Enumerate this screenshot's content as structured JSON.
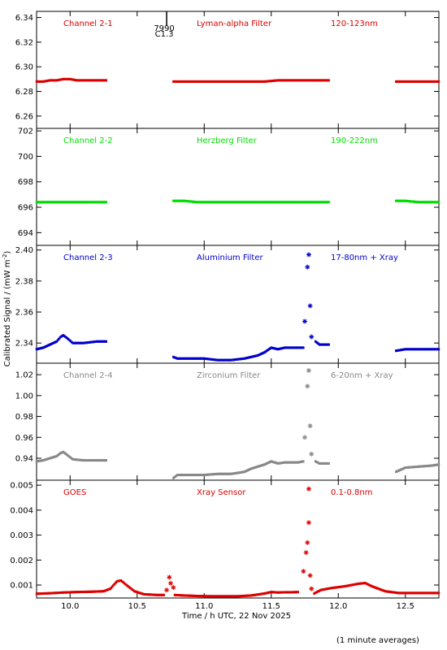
{
  "figure": {
    "ylabel": "Calibrated Signal / (mW m",
    "ylabel_sup": "-2",
    "ylabel_end": ")",
    "xlabel": "Time / h UTC, 22 Nov 2025",
    "footnote": "(1 minute averages)",
    "event_marker": {
      "x": 10.72,
      "label_top": "7990",
      "label_bottom": "C1.3"
    }
  },
  "chart_data": [
    {
      "type": "scatter",
      "panel": "Channel 2-1",
      "labels": [
        "Channel 2-1",
        "Lyman-alpha Filter",
        "120-123nm"
      ],
      "color": "#dd0000",
      "xlim": [
        9.75,
        12.75
      ],
      "ylim": [
        6.25,
        6.345
      ],
      "yticks": [
        6.26,
        6.28,
        6.3,
        6.32,
        6.34
      ],
      "ytick_labels": [
        "6.26",
        "6.28",
        "6.30",
        "6.32",
        "6.34"
      ],
      "marker": "dot",
      "series": [
        {
          "values": [
            [
              9.75,
              6.288
            ],
            [
              9.8,
              6.288
            ],
            [
              9.85,
              6.289
            ],
            [
              9.9,
              6.289
            ],
            [
              9.95,
              6.29
            ],
            [
              10.0,
              6.29
            ],
            [
              10.05,
              6.289
            ],
            [
              10.1,
              6.289
            ],
            [
              10.15,
              6.289
            ],
            [
              10.2,
              6.289
            ],
            [
              10.27,
              6.289
            ]
          ]
        },
        {
          "values": [
            [
              10.77,
              6.288
            ],
            [
              10.85,
              6.288
            ],
            [
              10.95,
              6.288
            ],
            [
              11.05,
              6.288
            ],
            [
              11.15,
              6.288
            ],
            [
              11.25,
              6.288
            ],
            [
              11.35,
              6.288
            ],
            [
              11.45,
              6.288
            ],
            [
              11.55,
              6.289
            ],
            [
              11.65,
              6.289
            ],
            [
              11.75,
              6.289
            ],
            [
              11.85,
              6.289
            ],
            [
              11.93,
              6.289
            ]
          ]
        },
        {
          "values": [
            [
              12.43,
              6.288
            ],
            [
              12.5,
              6.288
            ],
            [
              12.6,
              6.288
            ],
            [
              12.7,
              6.288
            ],
            [
              12.75,
              6.288
            ]
          ]
        }
      ]
    },
    {
      "type": "scatter",
      "panel": "Channel 2-2",
      "labels": [
        "Channel 2-2",
        "Herzberg Filter",
        "190-222nm"
      ],
      "color": "#00dd00",
      "xlim": [
        9.75,
        12.75
      ],
      "ylim": [
        693,
        702.2
      ],
      "yticks": [
        694,
        696,
        698,
        700,
        702
      ],
      "ytick_labels": [
        "694",
        "696",
        "698",
        "700",
        "702"
      ],
      "marker": "dot",
      "series": [
        {
          "values": [
            [
              9.75,
              696.4
            ],
            [
              9.85,
              696.4
            ],
            [
              9.95,
              696.4
            ],
            [
              10.05,
              696.4
            ],
            [
              10.15,
              696.4
            ],
            [
              10.27,
              696.4
            ]
          ]
        },
        {
          "values": [
            [
              10.77,
              696.5
            ],
            [
              10.85,
              696.5
            ],
            [
              10.95,
              696.4
            ],
            [
              11.05,
              696.4
            ],
            [
              11.15,
              696.4
            ],
            [
              11.25,
              696.4
            ],
            [
              11.35,
              696.4
            ],
            [
              11.45,
              696.4
            ],
            [
              11.55,
              696.4
            ],
            [
              11.65,
              696.4
            ],
            [
              11.75,
              696.4
            ],
            [
              11.85,
              696.4
            ],
            [
              11.93,
              696.4
            ]
          ]
        },
        {
          "values": [
            [
              12.43,
              696.5
            ],
            [
              12.5,
              696.5
            ],
            [
              12.6,
              696.4
            ],
            [
              12.7,
              696.4
            ],
            [
              12.75,
              696.4
            ]
          ]
        }
      ]
    },
    {
      "type": "scatter",
      "panel": "Channel 2-3",
      "labels": [
        "Channel 2-3",
        "Aluminium Filter",
        "17-80nm + Xray"
      ],
      "color": "#0000cc",
      "xlim": [
        9.75,
        12.75
      ],
      "ylim": [
        2.327,
        2.403
      ],
      "yticks": [
        2.34,
        2.36,
        2.38,
        2.4
      ],
      "ytick_labels": [
        "2.34",
        "2.36",
        "2.38",
        "2.40"
      ],
      "marker": "dot",
      "series": [
        {
          "values": [
            [
              9.75,
              2.336
            ],
            [
              9.8,
              2.337
            ],
            [
              9.85,
              2.339
            ],
            [
              9.9,
              2.341
            ],
            [
              9.93,
              2.344
            ],
            [
              9.95,
              2.345
            ],
            [
              9.98,
              2.343
            ],
            [
              10.02,
              2.34
            ],
            [
              10.1,
              2.34
            ],
            [
              10.2,
              2.341
            ],
            [
              10.27,
              2.341
            ]
          ]
        },
        {
          "values": [
            [
              10.77,
              2.331
            ],
            [
              10.8,
              2.33
            ],
            [
              10.9,
              2.33
            ],
            [
              11.0,
              2.33
            ],
            [
              11.1,
              2.329
            ],
            [
              11.2,
              2.329
            ],
            [
              11.3,
              2.33
            ],
            [
              11.35,
              2.331
            ],
            [
              11.4,
              2.332
            ],
            [
              11.45,
              2.334
            ],
            [
              11.5,
              2.337
            ],
            [
              11.55,
              2.336
            ],
            [
              11.6,
              2.337
            ],
            [
              11.65,
              2.337
            ],
            [
              11.7,
              2.337
            ],
            [
              11.74,
              2.337
            ]
          ]
        },
        {
          "values": [
            [
              11.83,
              2.341
            ],
            [
              11.86,
              2.339
            ],
            [
              11.9,
              2.339
            ],
            [
              11.93,
              2.339
            ]
          ]
        },
        {
          "values": [
            [
              12.43,
              2.335
            ],
            [
              12.5,
              2.336
            ],
            [
              12.6,
              2.336
            ],
            [
              12.7,
              2.336
            ],
            [
              12.75,
              2.336
            ]
          ]
        }
      ],
      "highlighted": [
        [
          11.75,
          2.354
        ],
        [
          11.77,
          2.389
        ],
        [
          11.78,
          2.397
        ],
        [
          11.79,
          2.364
        ],
        [
          11.8,
          2.344
        ]
      ]
    },
    {
      "type": "scatter",
      "panel": "Channel 2-4",
      "labels": [
        "Channel 2-4",
        "Zirconium Filter",
        "6-20nm + Xray"
      ],
      "color": "#888888",
      "xlim": [
        9.75,
        12.75
      ],
      "ylim": [
        0.919,
        1.031
      ],
      "yticks": [
        0.94,
        0.96,
        0.98,
        1.0,
        1.02
      ],
      "ytick_labels": [
        "0.94",
        "0.96",
        "0.98",
        "1.00",
        "1.02"
      ],
      "marker": "dot",
      "series": [
        {
          "values": [
            [
              9.75,
              0.937
            ],
            [
              9.8,
              0.938
            ],
            [
              9.85,
              0.94
            ],
            [
              9.9,
              0.942
            ],
            [
              9.93,
              0.945
            ],
            [
              9.95,
              0.946
            ],
            [
              9.98,
              0.943
            ],
            [
              10.02,
              0.939
            ],
            [
              10.1,
              0.938
            ],
            [
              10.2,
              0.938
            ],
            [
              10.27,
              0.938
            ]
          ]
        },
        {
          "values": [
            [
              10.77,
              0.921
            ],
            [
              10.8,
              0.924
            ],
            [
              10.9,
              0.924
            ],
            [
              11.0,
              0.924
            ],
            [
              11.1,
              0.925
            ],
            [
              11.2,
              0.925
            ],
            [
              11.3,
              0.927
            ],
            [
              11.35,
              0.93
            ],
            [
              11.4,
              0.932
            ],
            [
              11.45,
              0.934
            ],
            [
              11.5,
              0.937
            ],
            [
              11.55,
              0.935
            ],
            [
              11.6,
              0.936
            ],
            [
              11.65,
              0.936
            ],
            [
              11.7,
              0.936
            ],
            [
              11.74,
              0.937
            ]
          ]
        },
        {
          "values": [
            [
              11.83,
              0.937
            ],
            [
              11.86,
              0.935
            ],
            [
              11.9,
              0.935
            ],
            [
              11.93,
              0.935
            ]
          ]
        },
        {
          "values": [
            [
              12.43,
              0.927
            ],
            [
              12.5,
              0.931
            ],
            [
              12.6,
              0.932
            ],
            [
              12.7,
              0.933
            ],
            [
              12.75,
              0.934
            ]
          ]
        }
      ],
      "highlighted": [
        [
          11.75,
          0.96
        ],
        [
          11.77,
          1.009
        ],
        [
          11.78,
          1.024
        ],
        [
          11.79,
          0.971
        ],
        [
          11.8,
          0.944
        ]
      ]
    },
    {
      "type": "scatter",
      "panel": "GOES",
      "labels": [
        "GOES",
        "Xray Sensor",
        "0.1-0.8nm"
      ],
      "color": "#dd0000",
      "xlim": [
        9.75,
        12.75
      ],
      "ylim": [
        0.00048,
        0.0052
      ],
      "yticks": [
        0.001,
        0.002,
        0.003,
        0.004,
        0.005
      ],
      "ytick_labels": [
        "0.001",
        "0.002",
        "0.003",
        "0.004",
        "0.005"
      ],
      "xticks": [
        10.0,
        10.5,
        11.0,
        11.5,
        12.0,
        12.5
      ],
      "xtick_labels": [
        "10.0",
        "10.5",
        "11.0",
        "11.5",
        "12.0",
        "12.5"
      ],
      "marker": "dot",
      "series": [
        {
          "values": [
            [
              9.75,
              0.00065
            ],
            [
              9.85,
              0.00067
            ],
            [
              9.95,
              0.0007
            ],
            [
              10.05,
              0.00072
            ],
            [
              10.15,
              0.00073
            ],
            [
              10.25,
              0.00075
            ],
            [
              10.3,
              0.00085
            ],
            [
              10.35,
              0.00115
            ],
            [
              10.38,
              0.00118
            ],
            [
              10.42,
              0.001
            ],
            [
              10.48,
              0.00075
            ],
            [
              10.55,
              0.00063
            ],
            [
              10.65,
              0.0006
            ],
            [
              10.7,
              0.0006
            ]
          ]
        },
        {
          "values": [
            [
              10.78,
              0.0006
            ],
            [
              10.85,
              0.00058
            ],
            [
              10.95,
              0.00056
            ],
            [
              11.05,
              0.00055
            ],
            [
              11.15,
              0.00055
            ],
            [
              11.25,
              0.00055
            ],
            [
              11.35,
              0.00058
            ],
            [
              11.4,
              0.00062
            ],
            [
              11.45,
              0.00066
            ],
            [
              11.5,
              0.00072
            ],
            [
              11.55,
              0.0007
            ],
            [
              11.6,
              0.00071
            ],
            [
              11.65,
              0.00071
            ],
            [
              11.7,
              0.00072
            ]
          ]
        },
        {
          "values": [
            [
              11.82,
              0.00066
            ],
            [
              11.87,
              0.0008
            ],
            [
              11.95,
              0.00088
            ],
            [
              12.05,
              0.00095
            ],
            [
              12.15,
              0.00105
            ],
            [
              12.2,
              0.00108
            ],
            [
              12.25,
              0.00095
            ],
            [
              12.35,
              0.00075
            ],
            [
              12.45,
              0.00068
            ],
            [
              12.55,
              0.00068
            ],
            [
              12.65,
              0.00068
            ],
            [
              12.75,
              0.00068
            ]
          ]
        }
      ],
      "highlighted": [
        [
          10.72,
          0.0008
        ],
        [
          10.74,
          0.00131
        ],
        [
          10.75,
          0.00107
        ],
        [
          10.77,
          0.0009
        ],
        [
          11.74,
          0.00155
        ],
        [
          11.76,
          0.0023
        ],
        [
          11.77,
          0.0027
        ],
        [
          11.78,
          0.0035
        ],
        [
          11.78,
          0.00485
        ],
        [
          11.79,
          0.00138
        ],
        [
          11.8,
          0.00085
        ]
      ]
    }
  ]
}
